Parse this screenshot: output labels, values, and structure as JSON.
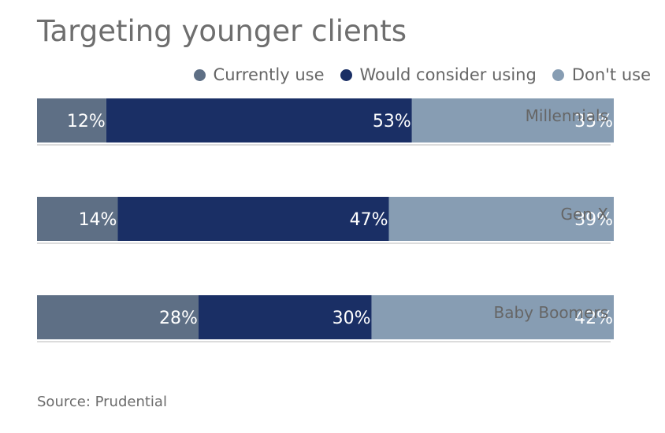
{
  "title": "Targeting younger clients",
  "source": "Source: Prudential",
  "colors": {
    "currently_use": "#5e6f85",
    "would_consider": "#1a2f65",
    "dont_use": "#879db3",
    "rule": "#b8b8b8",
    "category_text": "#666666"
  },
  "chart_data": {
    "type": "bar",
    "orientation": "horizontal",
    "stacked": true,
    "categories": [
      "Millennials",
      "Gen X",
      "Baby Boomers"
    ],
    "series": [
      {
        "name": "Currently use",
        "values": [
          12,
          14,
          28
        ],
        "labels": [
          "12%",
          "14%",
          "28%"
        ],
        "color_key": "currently_use"
      },
      {
        "name": "Would consider using",
        "values": [
          53,
          47,
          30
        ],
        "labels": [
          "53%",
          "47%",
          "30%"
        ],
        "color_key": "would_consider"
      },
      {
        "name": "Don't use",
        "values": [
          35,
          39,
          42
        ],
        "labels": [
          "35%",
          "39%",
          "42%"
        ],
        "color_key": "dont_use"
      }
    ],
    "xlim": [
      0,
      100
    ],
    "legend_position": "top-right",
    "grid": false
  }
}
